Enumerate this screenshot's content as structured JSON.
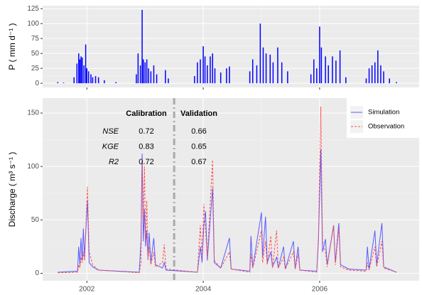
{
  "chart_data": [
    {
      "type": "bar",
      "y_label": "P ( mm d⁻¹ )",
      "color": "#0000ff",
      "x": [
        2001.5,
        2001.6,
        2001.78,
        2001.83,
        2001.86,
        2001.88,
        2001.9,
        2001.92,
        2001.95,
        2001.98,
        2002.0,
        2002.03,
        2002.07,
        2002.1,
        2002.15,
        2002.2,
        2002.3,
        2002.5,
        2002.85,
        2002.88,
        2002.92,
        2002.95,
        2002.97,
        2003.0,
        2003.03,
        2003.06,
        2003.1,
        2003.15,
        2003.2,
        2003.35,
        2003.4,
        2003.85,
        2003.9,
        2003.95,
        2004.0,
        2004.03,
        2004.07,
        2004.12,
        2004.16,
        2004.2,
        2004.3,
        2004.4,
        2004.45,
        2004.8,
        2004.85,
        2004.92,
        2004.98,
        2005.03,
        2005.08,
        2005.15,
        2005.2,
        2005.28,
        2005.35,
        2005.45,
        2005.85,
        2005.9,
        2005.95,
        2006.0,
        2006.03,
        2006.1,
        2006.15,
        2006.22,
        2006.28,
        2006.35,
        2006.45,
        2006.8,
        2006.85,
        2006.9,
        2006.95,
        2007.0,
        2007.05,
        2007.1,
        2007.2,
        2007.32
      ],
      "values": [
        2,
        1,
        10,
        33,
        50,
        40,
        45,
        43,
        30,
        65,
        25,
        20,
        15,
        10,
        12,
        10,
        5,
        2,
        15,
        50,
        30,
        123,
        40,
        35,
        40,
        25,
        20,
        30,
        15,
        22,
        8,
        12,
        35,
        40,
        62,
        45,
        30,
        45,
        50,
        25,
        18,
        25,
        28,
        20,
        40,
        30,
        100,
        60,
        50,
        48,
        35,
        60,
        35,
        20,
        15,
        40,
        25,
        95,
        60,
        45,
        30,
        45,
        38,
        55,
        10,
        8,
        25,
        30,
        35,
        55,
        30,
        20,
        8,
        2
      ],
      "xlim": [
        2001.24,
        2007.71
      ],
      "xticks": [
        2002,
        2004,
        2006
      ],
      "show_x_tick_labels": false,
      "ylim": [
        -7,
        130
      ],
      "yticks": [
        0,
        25,
        50,
        75,
        100,
        125
      ],
      "grid": true
    },
    {
      "type": "line",
      "y_label": "Discharge ( m³ s⁻¹ )",
      "x": [
        2001.5,
        2001.84,
        2001.86,
        2001.88,
        2001.9,
        2001.92,
        2001.94,
        2001.96,
        2002.01,
        2002.04,
        2002.1,
        2002.2,
        2002.9,
        2002.93,
        2002.95,
        2002.97,
        2002.99,
        2003.01,
        2003.03,
        2003.05,
        2003.07,
        2003.1,
        2003.15,
        2003.18,
        2003.3,
        2003.33,
        2003.36,
        2003.9,
        2003.95,
        2003.98,
        2004.01,
        2004.04,
        2004.07,
        2004.16,
        2004.19,
        2004.3,
        2004.45,
        2004.48,
        2004.8,
        2004.82,
        2004.85,
        2005.0,
        2005.02,
        2005.07,
        2005.1,
        2005.16,
        2005.19,
        2005.26,
        2005.29,
        2005.38,
        2005.41,
        2005.55,
        2005.58,
        2005.63,
        2005.66,
        2005.95,
        2005.98,
        2006.02,
        2006.05,
        2006.1,
        2006.13,
        2006.24,
        2006.27,
        2006.33,
        2006.36,
        2006.5,
        2006.8,
        2006.82,
        2006.85,
        2006.95,
        2006.98,
        2007.07,
        2007.1,
        2007.32
      ],
      "series": [
        {
          "name": "Simulation",
          "color": "#5a5aff",
          "linestyle": "solid",
          "values": [
            1,
            2,
            25,
            8,
            33,
            12,
            42,
            15,
            68,
            10,
            6,
            3,
            1,
            30,
            112,
            30,
            60,
            25,
            40,
            15,
            38,
            10,
            33,
            8,
            5,
            10,
            3,
            1,
            25,
            10,
            45,
            58,
            12,
            80,
            10,
            5,
            33,
            4,
            2,
            35,
            5,
            57,
            15,
            53,
            10,
            20,
            6,
            15,
            5,
            25,
            4,
            30,
            4,
            25,
            3,
            2,
            30,
            116,
            20,
            32,
            8,
            45,
            10,
            47,
            8,
            4,
            3,
            25,
            4,
            40,
            8,
            47,
            6,
            1
          ]
        },
        {
          "name": "Observation",
          "color": "#ff4d4d",
          "linestyle": "dashed",
          "values": [
            0.5,
            1,
            8,
            5,
            15,
            10,
            20,
            12,
            81,
            20,
            8,
            3,
            0.5,
            10,
            107,
            50,
            100,
            30,
            68,
            12,
            25,
            8,
            20,
            6,
            10,
            27,
            4,
            1,
            45,
            15,
            65,
            40,
            15,
            106,
            12,
            5,
            20,
            4,
            1,
            18,
            5,
            40,
            10,
            30,
            8,
            35,
            5,
            40,
            5,
            15,
            4,
            20,
            4,
            18,
            3,
            1,
            35,
            156,
            30,
            20,
            6,
            45,
            8,
            42,
            6,
            3,
            2,
            10,
            3,
            25,
            6,
            30,
            5,
            1
          ]
        }
      ],
      "xlim": [
        2001.24,
        2007.71
      ],
      "xticks": [
        2002,
        2004,
        2006
      ],
      "ylim": [
        -7,
        164
      ],
      "yticks": [
        0,
        50,
        100,
        150
      ],
      "grid": true,
      "legend": "top-right",
      "split_x": 2003.5,
      "metrics": {
        "header": [
          "Calibration",
          "Validation"
        ],
        "rows": [
          {
            "label": "NSE",
            "values": [
              0.72,
              0.66
            ]
          },
          {
            "label": "KGE",
            "values": [
              0.83,
              0.65
            ]
          },
          {
            "label": "R2",
            "values": [
              0.72,
              0.67
            ]
          }
        ]
      }
    }
  ]
}
